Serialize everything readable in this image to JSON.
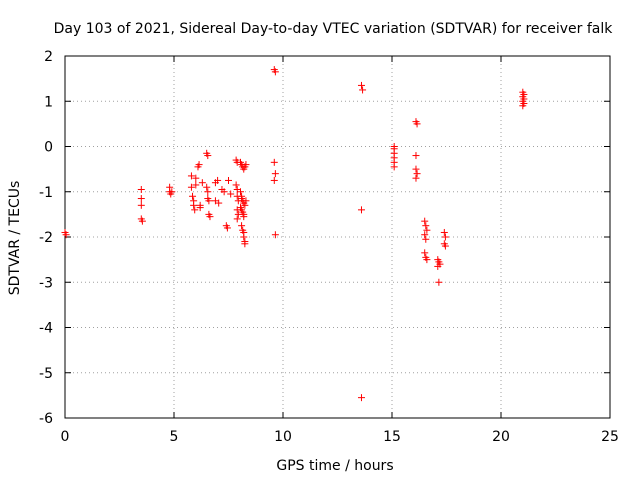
{
  "chart_data": {
    "type": "scatter",
    "title": "Day 103 of 2021, Sidereal Day-to-day VTEC variation (SDTVAR) for receiver falk",
    "xlabel": "GPS time / hours",
    "ylabel": "SDTVAR / TECUs",
    "xlim": [
      0,
      25
    ],
    "ylim": [
      -6,
      2
    ],
    "xticks": [
      0,
      5,
      10,
      15,
      20,
      25
    ],
    "yticks": [
      -6,
      -5,
      -4,
      -3,
      -2,
      -1,
      0,
      1,
      2
    ],
    "grid": true,
    "marker": "plus",
    "color": "#ff0000",
    "points": [
      [
        0.0,
        -1.9
      ],
      [
        0.05,
        -1.95
      ],
      [
        3.5,
        -0.95
      ],
      [
        3.5,
        -1.15
      ],
      [
        3.5,
        -1.3
      ],
      [
        3.5,
        -1.6
      ],
      [
        3.55,
        -1.65
      ],
      [
        4.8,
        -0.9
      ],
      [
        4.8,
        -1.0
      ],
      [
        4.85,
        -1.05
      ],
      [
        4.9,
        -1.0
      ],
      [
        5.8,
        -0.65
      ],
      [
        5.8,
        -0.9
      ],
      [
        5.85,
        -1.1
      ],
      [
        5.9,
        -1.2
      ],
      [
        5.9,
        -1.3
      ],
      [
        5.95,
        -1.4
      ],
      [
        6.0,
        -0.85
      ],
      [
        6.0,
        -0.7
      ],
      [
        6.1,
        -0.45
      ],
      [
        6.15,
        -0.4
      ],
      [
        6.2,
        -1.3
      ],
      [
        6.2,
        -1.35
      ],
      [
        6.3,
        -0.8
      ],
      [
        6.5,
        -0.15
      ],
      [
        6.55,
        -0.2
      ],
      [
        6.5,
        -0.9
      ],
      [
        6.55,
        -1.0
      ],
      [
        6.55,
        -1.15
      ],
      [
        6.6,
        -1.2
      ],
      [
        6.6,
        -1.5
      ],
      [
        6.65,
        -1.55
      ],
      [
        6.9,
        -0.8
      ],
      [
        7.0,
        -0.75
      ],
      [
        6.9,
        -1.2
      ],
      [
        7.05,
        -1.25
      ],
      [
        7.2,
        -0.95
      ],
      [
        7.3,
        -1.0
      ],
      [
        7.4,
        -1.75
      ],
      [
        7.45,
        -1.8
      ],
      [
        7.5,
        -0.75
      ],
      [
        7.6,
        -1.05
      ],
      [
        7.85,
        -0.3
      ],
      [
        7.9,
        -0.35
      ],
      [
        7.85,
        -0.85
      ],
      [
        7.9,
        -0.95
      ],
      [
        7.9,
        -1.1
      ],
      [
        7.95,
        -1.2
      ],
      [
        7.9,
        -1.4
      ],
      [
        7.95,
        -1.5
      ],
      [
        7.9,
        -1.6
      ],
      [
        8.05,
        -0.35
      ],
      [
        8.1,
        -0.4
      ],
      [
        8.15,
        -0.45
      ],
      [
        8.2,
        -0.5
      ],
      [
        8.25,
        -0.45
      ],
      [
        8.3,
        -0.4
      ],
      [
        8.05,
        -1.0
      ],
      [
        8.1,
        -1.1
      ],
      [
        8.1,
        -1.15
      ],
      [
        8.15,
        -1.2
      ],
      [
        8.2,
        -1.25
      ],
      [
        8.25,
        -1.3
      ],
      [
        8.05,
        -1.35
      ],
      [
        8.1,
        -1.4
      ],
      [
        8.15,
        -1.45
      ],
      [
        8.2,
        -1.5
      ],
      [
        8.2,
        -1.55
      ],
      [
        8.3,
        -1.2
      ],
      [
        8.1,
        -1.75
      ],
      [
        8.15,
        -1.85
      ],
      [
        8.2,
        -1.9
      ],
      [
        8.2,
        -2.0
      ],
      [
        8.25,
        -2.1
      ],
      [
        8.25,
        -2.15
      ],
      [
        9.6,
        1.7
      ],
      [
        9.65,
        1.65
      ],
      [
        9.6,
        -0.35
      ],
      [
        9.65,
        -0.6
      ],
      [
        9.6,
        -0.75
      ],
      [
        9.65,
        -1.95
      ],
      [
        13.6,
        1.35
      ],
      [
        13.65,
        1.25
      ],
      [
        13.6,
        -1.4
      ],
      [
        13.6,
        -5.55
      ],
      [
        15.1,
        0.0
      ],
      [
        15.1,
        -0.05
      ],
      [
        15.1,
        -0.15
      ],
      [
        15.1,
        -0.25
      ],
      [
        15.1,
        -0.35
      ],
      [
        15.1,
        -0.45
      ],
      [
        16.1,
        0.55
      ],
      [
        16.15,
        0.5
      ],
      [
        16.1,
        -0.2
      ],
      [
        16.1,
        -0.5
      ],
      [
        16.15,
        -0.6
      ],
      [
        16.1,
        -0.7
      ],
      [
        16.5,
        -1.65
      ],
      [
        16.55,
        -1.75
      ],
      [
        16.6,
        -1.85
      ],
      [
        16.5,
        -1.95
      ],
      [
        16.55,
        -2.05
      ],
      [
        16.5,
        -2.35
      ],
      [
        16.55,
        -2.45
      ],
      [
        16.6,
        -2.5
      ],
      [
        17.1,
        -2.5
      ],
      [
        17.15,
        -2.55
      ],
      [
        17.2,
        -2.6
      ],
      [
        17.1,
        -2.65
      ],
      [
        17.15,
        -3.0
      ],
      [
        17.4,
        -1.9
      ],
      [
        17.45,
        -2.0
      ],
      [
        17.4,
        -2.15
      ],
      [
        17.45,
        -2.2
      ],
      [
        21.0,
        1.2
      ],
      [
        21.05,
        1.15
      ],
      [
        21.0,
        1.1
      ],
      [
        21.05,
        1.05
      ],
      [
        21.0,
        1.0
      ],
      [
        21.05,
        0.95
      ],
      [
        21.0,
        0.9
      ]
    ]
  }
}
